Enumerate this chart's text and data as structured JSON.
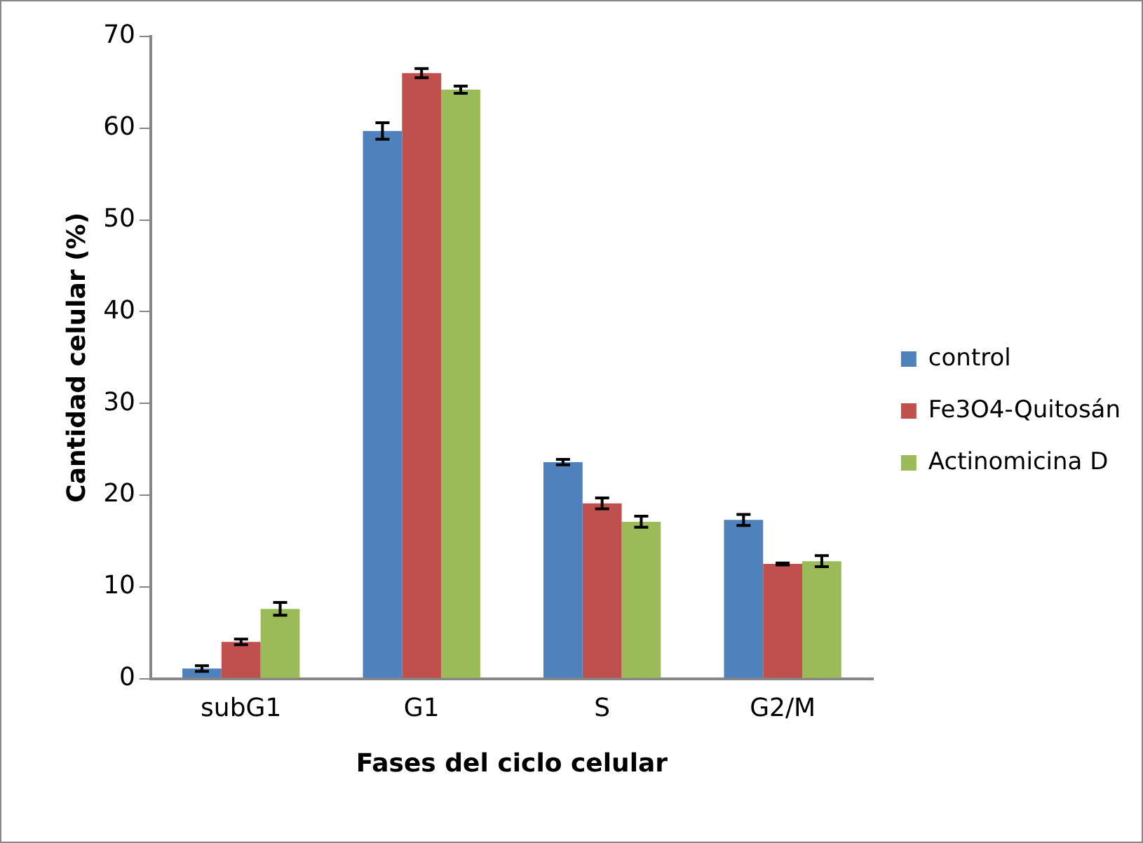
{
  "chart_data": {
    "type": "bar",
    "xlabel": "Fases del ciclo celular",
    "ylabel": "Cantidad celular (%)",
    "categories": [
      "subG1",
      "G1",
      "S",
      "G2/M"
    ],
    "series": [
      {
        "name": "control",
        "color": "#4f81bd",
        "values": [
          1.1,
          59.7,
          23.6,
          17.3
        ],
        "errors": [
          0.3,
          0.9,
          0.3,
          0.6
        ]
      },
      {
        "name": "Fe3O4-Quitosán",
        "color": "#c0504d",
        "values": [
          4.0,
          66.0,
          19.1,
          12.5
        ],
        "errors": [
          0.3,
          0.5,
          0.6,
          0.1
        ]
      },
      {
        "name": "Actinomicina D",
        "color": "#9bbb59",
        "values": [
          7.6,
          64.2,
          17.1,
          12.8
        ],
        "errors": [
          0.7,
          0.4,
          0.6,
          0.6
        ]
      }
    ],
    "ylim": [
      0,
      70
    ],
    "yticks": [
      0,
      10,
      20,
      30,
      40,
      50,
      60,
      70
    ],
    "grid": false,
    "legend": "right"
  }
}
